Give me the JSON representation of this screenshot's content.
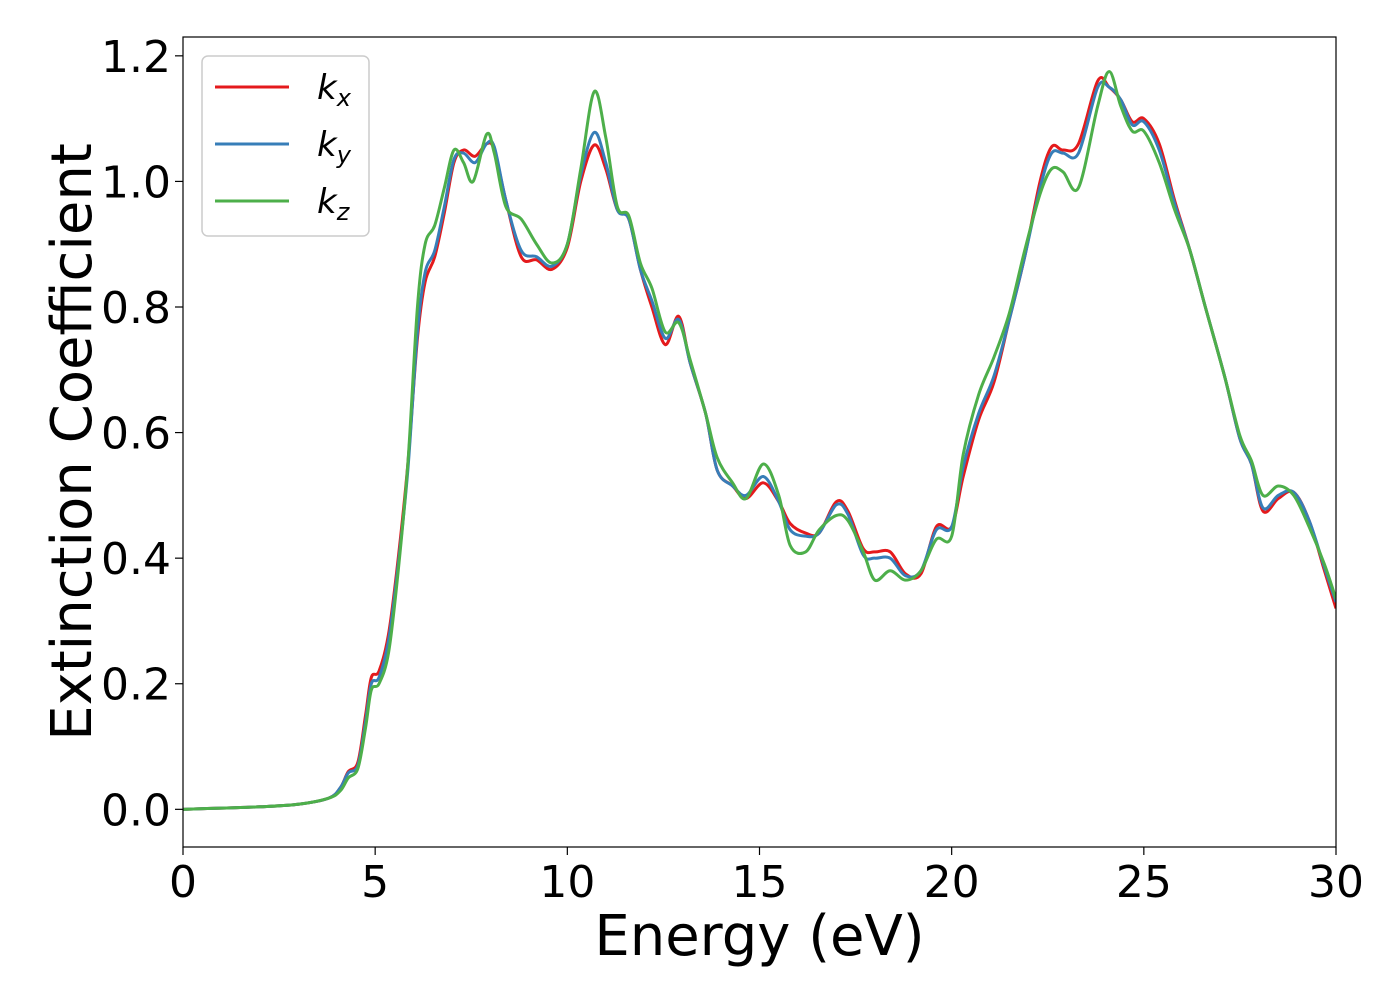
{
  "chart_data": {
    "type": "line",
    "xlabel": "Energy (eV)",
    "ylabel": "Extinction Coefficient",
    "xlim": [
      0,
      30
    ],
    "ylim": [
      -0.06,
      1.23
    ],
    "xticks": [
      0,
      5,
      10,
      15,
      20,
      25,
      30
    ],
    "yticks": [
      0.0,
      0.2,
      0.4,
      0.6,
      0.8,
      1.0,
      1.2
    ],
    "grid": false,
    "legend_position": "top-left",
    "series": [
      {
        "name": "k",
        "subscript": "x",
        "color": "#e41a1c",
        "points": [
          [
            0,
            0.0
          ],
          [
            1,
            0.002
          ],
          [
            2,
            0.004
          ],
          [
            3,
            0.008
          ],
          [
            3.8,
            0.018
          ],
          [
            4.1,
            0.035
          ],
          [
            4.3,
            0.06
          ],
          [
            4.55,
            0.075
          ],
          [
            4.75,
            0.15
          ],
          [
            4.9,
            0.21
          ],
          [
            5.1,
            0.22
          ],
          [
            5.35,
            0.28
          ],
          [
            5.6,
            0.4
          ],
          [
            5.85,
            0.55
          ],
          [
            6.1,
            0.75
          ],
          [
            6.3,
            0.84
          ],
          [
            6.55,
            0.88
          ],
          [
            6.8,
            0.95
          ],
          [
            7.05,
            1.03
          ],
          [
            7.3,
            1.05
          ],
          [
            7.6,
            1.04
          ],
          [
            7.9,
            1.06
          ],
          [
            8.1,
            1.05
          ],
          [
            8.4,
            0.97
          ],
          [
            8.8,
            0.88
          ],
          [
            9.2,
            0.875
          ],
          [
            9.6,
            0.86
          ],
          [
            10.0,
            0.895
          ],
          [
            10.35,
            1.0
          ],
          [
            10.7,
            1.058
          ],
          [
            11.0,
            1.02
          ],
          [
            11.3,
            0.955
          ],
          [
            11.6,
            0.94
          ],
          [
            11.9,
            0.86
          ],
          [
            12.2,
            0.8
          ],
          [
            12.55,
            0.74
          ],
          [
            12.9,
            0.785
          ],
          [
            13.2,
            0.71
          ],
          [
            13.6,
            0.63
          ],
          [
            13.9,
            0.54
          ],
          [
            14.3,
            0.515
          ],
          [
            14.65,
            0.495
          ],
          [
            15.1,
            0.52
          ],
          [
            15.5,
            0.49
          ],
          [
            15.8,
            0.455
          ],
          [
            16.2,
            0.44
          ],
          [
            16.55,
            0.44
          ],
          [
            17.0,
            0.49
          ],
          [
            17.3,
            0.475
          ],
          [
            17.7,
            0.415
          ],
          [
            18.0,
            0.41
          ],
          [
            18.4,
            0.41
          ],
          [
            18.8,
            0.375
          ],
          [
            19.2,
            0.375
          ],
          [
            19.6,
            0.45
          ],
          [
            20.0,
            0.45
          ],
          [
            20.3,
            0.53
          ],
          [
            20.7,
            0.62
          ],
          [
            21.1,
            0.68
          ],
          [
            21.5,
            0.78
          ],
          [
            21.9,
            0.88
          ],
          [
            22.3,
            1.0
          ],
          [
            22.6,
            1.055
          ],
          [
            22.9,
            1.05
          ],
          [
            23.3,
            1.06
          ],
          [
            23.8,
            1.16
          ],
          [
            24.1,
            1.15
          ],
          [
            24.4,
            1.13
          ],
          [
            24.7,
            1.095
          ],
          [
            25.0,
            1.1
          ],
          [
            25.4,
            1.06
          ],
          [
            25.8,
            0.97
          ],
          [
            26.2,
            0.89
          ],
          [
            26.6,
            0.8
          ],
          [
            27.1,
            0.69
          ],
          [
            27.5,
            0.59
          ],
          [
            27.8,
            0.55
          ],
          [
            28.1,
            0.475
          ],
          [
            28.5,
            0.495
          ],
          [
            28.9,
            0.505
          ],
          [
            29.3,
            0.46
          ],
          [
            29.7,
            0.38
          ],
          [
            30.0,
            0.32
          ]
        ]
      },
      {
        "name": "k",
        "subscript": "y",
        "color": "#377eb8",
        "points": [
          [
            0,
            0.0
          ],
          [
            1,
            0.002
          ],
          [
            2,
            0.004
          ],
          [
            3,
            0.008
          ],
          [
            3.8,
            0.018
          ],
          [
            4.1,
            0.035
          ],
          [
            4.3,
            0.058
          ],
          [
            4.55,
            0.07
          ],
          [
            4.75,
            0.14
          ],
          [
            4.9,
            0.2
          ],
          [
            5.1,
            0.21
          ],
          [
            5.35,
            0.27
          ],
          [
            5.6,
            0.39
          ],
          [
            5.85,
            0.54
          ],
          [
            6.1,
            0.76
          ],
          [
            6.3,
            0.855
          ],
          [
            6.55,
            0.89
          ],
          [
            6.8,
            0.96
          ],
          [
            7.05,
            1.035
          ],
          [
            7.3,
            1.045
          ],
          [
            7.6,
            1.03
          ],
          [
            7.9,
            1.06
          ],
          [
            8.1,
            1.055
          ],
          [
            8.4,
            0.97
          ],
          [
            8.8,
            0.89
          ],
          [
            9.2,
            0.88
          ],
          [
            9.6,
            0.865
          ],
          [
            10.0,
            0.9
          ],
          [
            10.35,
            1.01
          ],
          [
            10.7,
            1.078
          ],
          [
            11.0,
            1.03
          ],
          [
            11.3,
            0.955
          ],
          [
            11.6,
            0.94
          ],
          [
            11.9,
            0.86
          ],
          [
            12.2,
            0.81
          ],
          [
            12.55,
            0.75
          ],
          [
            12.9,
            0.78
          ],
          [
            13.2,
            0.71
          ],
          [
            13.6,
            0.63
          ],
          [
            13.9,
            0.54
          ],
          [
            14.3,
            0.515
          ],
          [
            14.65,
            0.5
          ],
          [
            15.1,
            0.53
          ],
          [
            15.5,
            0.49
          ],
          [
            15.8,
            0.445
          ],
          [
            16.2,
            0.435
          ],
          [
            16.55,
            0.44
          ],
          [
            17.0,
            0.485
          ],
          [
            17.3,
            0.47
          ],
          [
            17.7,
            0.405
          ],
          [
            18.0,
            0.4
          ],
          [
            18.4,
            0.4
          ],
          [
            18.8,
            0.372
          ],
          [
            19.2,
            0.38
          ],
          [
            19.6,
            0.445
          ],
          [
            20.0,
            0.45
          ],
          [
            20.3,
            0.545
          ],
          [
            20.7,
            0.63
          ],
          [
            21.1,
            0.69
          ],
          [
            21.5,
            0.78
          ],
          [
            21.9,
            0.88
          ],
          [
            22.3,
            0.99
          ],
          [
            22.6,
            1.045
          ],
          [
            22.9,
            1.045
          ],
          [
            23.3,
            1.045
          ],
          [
            23.8,
            1.15
          ],
          [
            24.1,
            1.15
          ],
          [
            24.4,
            1.13
          ],
          [
            24.7,
            1.09
          ],
          [
            25.0,
            1.095
          ],
          [
            25.4,
            1.05
          ],
          [
            25.8,
            0.965
          ],
          [
            26.2,
            0.89
          ],
          [
            26.6,
            0.8
          ],
          [
            27.1,
            0.69
          ],
          [
            27.5,
            0.59
          ],
          [
            27.8,
            0.55
          ],
          [
            28.1,
            0.48
          ],
          [
            28.5,
            0.5
          ],
          [
            28.9,
            0.505
          ],
          [
            29.3,
            0.46
          ],
          [
            29.7,
            0.385
          ],
          [
            30.0,
            0.33
          ]
        ]
      },
      {
        "name": "k",
        "subscript": "z",
        "color": "#4daf4a",
        "points": [
          [
            0,
            0.0
          ],
          [
            1,
            0.002
          ],
          [
            2,
            0.004
          ],
          [
            3,
            0.008
          ],
          [
            3.8,
            0.018
          ],
          [
            4.1,
            0.03
          ],
          [
            4.3,
            0.05
          ],
          [
            4.55,
            0.065
          ],
          [
            4.75,
            0.13
          ],
          [
            4.9,
            0.19
          ],
          [
            5.1,
            0.2
          ],
          [
            5.35,
            0.25
          ],
          [
            5.6,
            0.38
          ],
          [
            5.85,
            0.55
          ],
          [
            6.1,
            0.8
          ],
          [
            6.3,
            0.9
          ],
          [
            6.55,
            0.93
          ],
          [
            6.8,
            0.99
          ],
          [
            7.05,
            1.05
          ],
          [
            7.3,
            1.03
          ],
          [
            7.55,
            1.0
          ],
          [
            7.9,
            1.075
          ],
          [
            8.1,
            1.045
          ],
          [
            8.4,
            0.96
          ],
          [
            8.8,
            0.94
          ],
          [
            9.2,
            0.9
          ],
          [
            9.6,
            0.87
          ],
          [
            10.0,
            0.9
          ],
          [
            10.35,
            1.02
          ],
          [
            10.7,
            1.143
          ],
          [
            11.0,
            1.07
          ],
          [
            11.3,
            0.96
          ],
          [
            11.6,
            0.945
          ],
          [
            11.9,
            0.87
          ],
          [
            12.2,
            0.83
          ],
          [
            12.55,
            0.76
          ],
          [
            12.9,
            0.775
          ],
          [
            13.2,
            0.715
          ],
          [
            13.6,
            0.63
          ],
          [
            13.9,
            0.56
          ],
          [
            14.3,
            0.52
          ],
          [
            14.65,
            0.495
          ],
          [
            15.1,
            0.55
          ],
          [
            15.5,
            0.5
          ],
          [
            15.8,
            0.42
          ],
          [
            16.2,
            0.41
          ],
          [
            16.55,
            0.445
          ],
          [
            17.0,
            0.468
          ],
          [
            17.3,
            0.46
          ],
          [
            17.7,
            0.41
          ],
          [
            18.0,
            0.365
          ],
          [
            18.4,
            0.38
          ],
          [
            18.8,
            0.365
          ],
          [
            19.2,
            0.38
          ],
          [
            19.6,
            0.43
          ],
          [
            20.0,
            0.435
          ],
          [
            20.3,
            0.565
          ],
          [
            20.7,
            0.66
          ],
          [
            21.1,
            0.72
          ],
          [
            21.5,
            0.79
          ],
          [
            21.9,
            0.89
          ],
          [
            22.3,
            0.98
          ],
          [
            22.6,
            1.02
          ],
          [
            22.9,
            1.015
          ],
          [
            23.3,
            0.99
          ],
          [
            23.8,
            1.12
          ],
          [
            24.1,
            1.175
          ],
          [
            24.4,
            1.12
          ],
          [
            24.7,
            1.08
          ],
          [
            25.0,
            1.08
          ],
          [
            25.4,
            1.03
          ],
          [
            25.8,
            0.955
          ],
          [
            26.2,
            0.89
          ],
          [
            26.6,
            0.8
          ],
          [
            27.1,
            0.69
          ],
          [
            27.5,
            0.595
          ],
          [
            27.8,
            0.555
          ],
          [
            28.1,
            0.5
          ],
          [
            28.5,
            0.515
          ],
          [
            28.9,
            0.5
          ],
          [
            29.3,
            0.45
          ],
          [
            29.7,
            0.39
          ],
          [
            30.0,
            0.335
          ]
        ]
      }
    ]
  }
}
